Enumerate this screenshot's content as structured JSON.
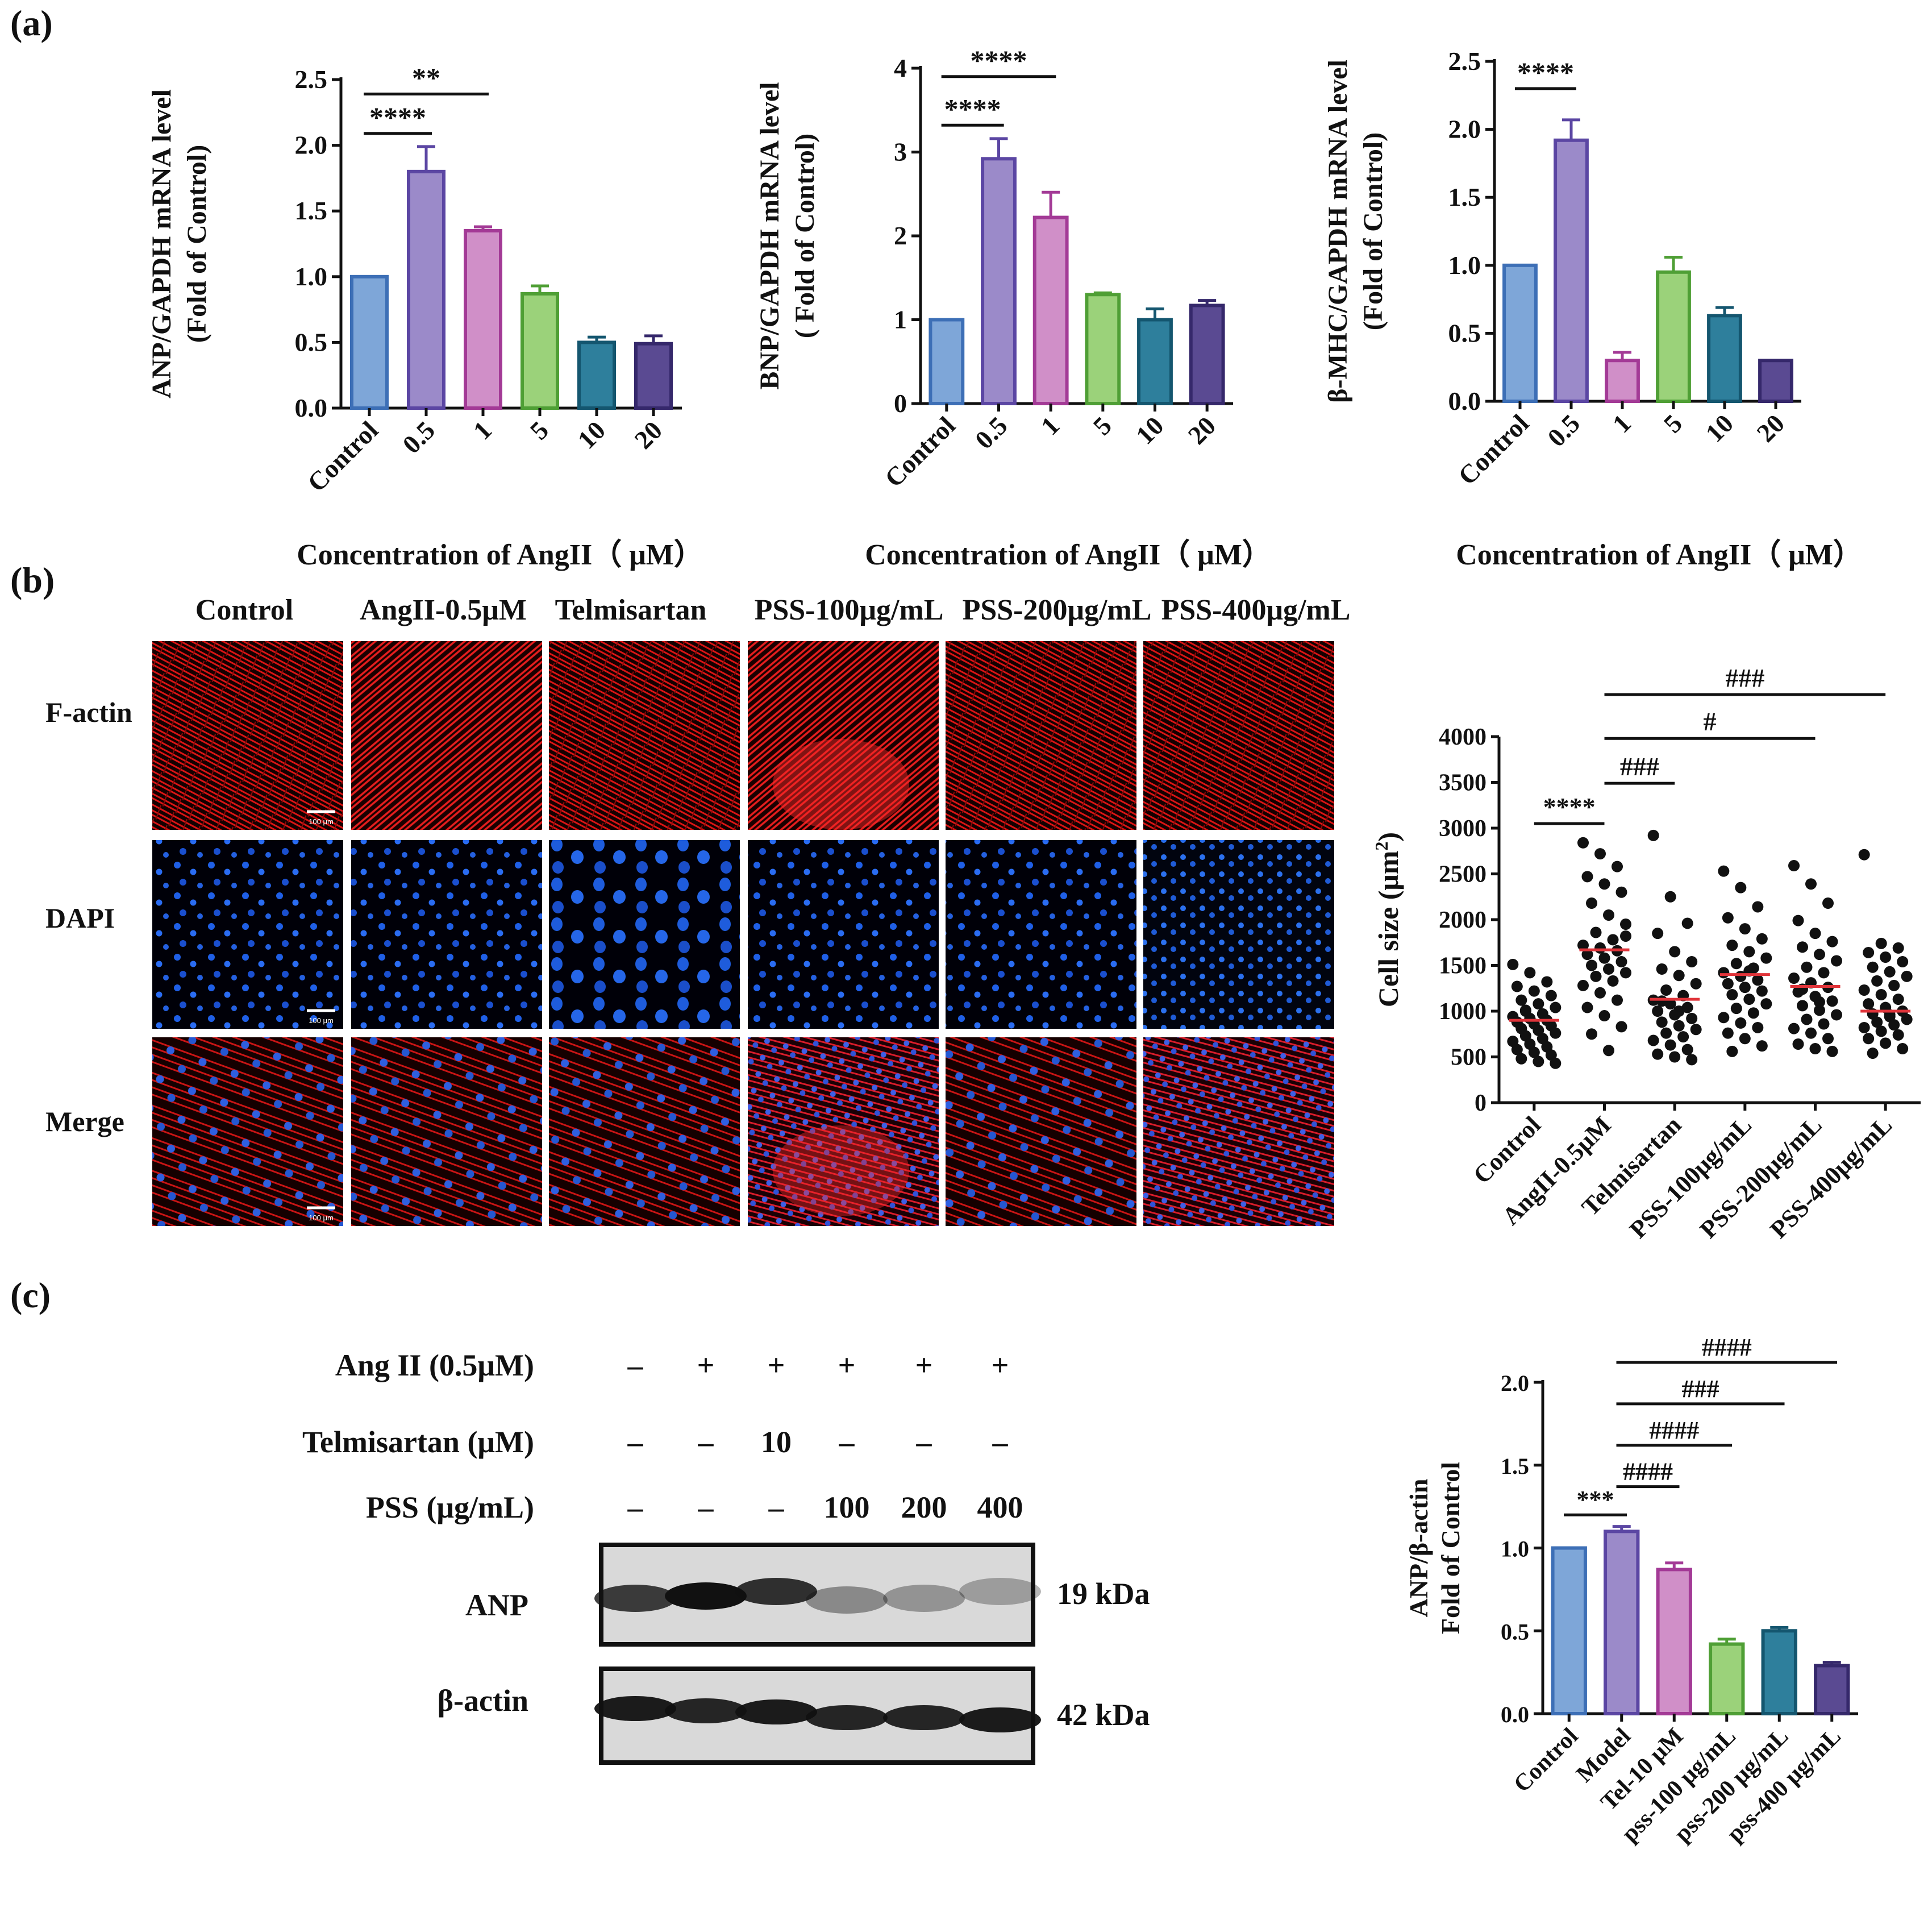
{
  "panels": {
    "a": "(a)",
    "b": "(b)",
    "c": "(c)"
  },
  "colors": {
    "control": "#7ea6d8",
    "p05": "#9b8ac9",
    "p1": "#d08fc8",
    "p5": "#9bd27a",
    "p10": "#2e7f9c",
    "p20": "#5a4a92",
    "red_line": "#e0343a"
  },
  "chart_data": [
    {
      "type": "bar",
      "ylabel_line1": "ANP/GAPDH mRNA level",
      "ylabel_line2": "(Fold of Control)",
      "xlabel": "Concentration of AngII（ μM）",
      "categories": [
        "Control",
        "0.5",
        "1",
        "5",
        "10",
        "20"
      ],
      "values": [
        1.0,
        1.8,
        1.35,
        0.87,
        0.5,
        0.49
      ],
      "errors": [
        0.0,
        0.19,
        0.03,
        0.06,
        0.04,
        0.06
      ],
      "ylim": [
        0,
        2.5
      ],
      "yticks": [
        "0.0",
        "0.5",
        "1.0",
        "1.5",
        "2.0",
        "2.5"
      ],
      "significance": [
        {
          "from": 0,
          "to": 1,
          "label": "****",
          "y": 2.09
        },
        {
          "from": 0,
          "to": 2,
          "label": "**",
          "y": 2.39
        }
      ]
    },
    {
      "type": "bar",
      "ylabel_line1": "BNP/GAPDH  mRNA level",
      "ylabel_line2": "( Fold of Control)",
      "xlabel": "Concentration of AngII（ μM）",
      "categories": [
        "Control",
        "0.5",
        "1",
        "5",
        "10",
        "20"
      ],
      "values": [
        1.0,
        2.92,
        2.22,
        1.3,
        1.0,
        1.17
      ],
      "errors": [
        0.0,
        0.24,
        0.3,
        0.02,
        0.13,
        0.06
      ],
      "ylim": [
        0,
        4
      ],
      "yticks": [
        "0",
        "1",
        "2",
        "3",
        "4"
      ],
      "significance": [
        {
          "from": 0,
          "to": 1,
          "label": "****",
          "y": 3.32
        },
        {
          "from": 0,
          "to": 2,
          "label": "****",
          "y": 3.9
        }
      ]
    },
    {
      "type": "bar",
      "ylabel_line1": "β-MHC/GAPDH  mRNA level",
      "ylabel_line2": "(Fold of Control)",
      "xlabel": "Concentration of AngII（ μM）",
      "categories": [
        "Control",
        "0.5",
        "1",
        "5",
        "10",
        "20"
      ],
      "values": [
        1.0,
        1.92,
        0.3,
        0.95,
        0.63,
        0.3
      ],
      "errors": [
        0.0,
        0.15,
        0.06,
        0.11,
        0.06,
        0.0
      ],
      "ylim": [
        0,
        2.5
      ],
      "yticks": [
        "0.0",
        "0.5",
        "1.0",
        "1.5",
        "2.0",
        "2.5"
      ],
      "significance": [
        {
          "from": 0,
          "to": 1,
          "label": "****",
          "y": 2.3
        }
      ]
    },
    {
      "type": "scatter",
      "ylabel": "Cell size (μm",
      "ylabel_sup": "2",
      "ylabel_close": ")",
      "categories": [
        "Control",
        "AngII-0.5μM",
        "Telmisartan",
        "PSS-100μg/mL",
        "PSS-200μg/mL",
        "PSS-400μg/mL"
      ],
      "ylim": [
        0,
        4000
      ],
      "yticks": [
        "0",
        "500",
        "1000",
        "1500",
        "2000",
        "2500",
        "3000",
        "3500",
        "4000"
      ],
      "means": [
        900,
        1670,
        1130,
        1400,
        1270,
        1000
      ],
      "points": [
        [
          1510,
          1420,
          1320,
          1270,
          1220,
          1170,
          1120,
          1080,
          1040,
          1000,
          970,
          940,
          920,
          900,
          880,
          860,
          840,
          810,
          790,
          760,
          730,
          700,
          670,
          640,
          610,
          580,
          550,
          520,
          480,
          450,
          430,
          1010
        ],
        [
          2840,
          2720,
          2580,
          2470,
          2390,
          2300,
          2180,
          2050,
          1950,
          1860,
          1780,
          1720,
          1690,
          1660,
          1620,
          1580,
          1540,
          1500,
          1460,
          1420,
          1380,
          1330,
          1280,
          1200,
          1120,
          1040,
          950,
          830,
          750,
          570,
          1820
        ],
        [
          2920,
          2250,
          1960,
          1850,
          1650,
          1540,
          1460,
          1390,
          1300,
          1230,
          1170,
          1120,
          1080,
          1040,
          1000,
          960,
          920,
          880,
          840,
          800,
          760,
          720,
          680,
          630,
          580,
          530,
          500,
          470,
          1110,
          1000
        ],
        [
          2530,
          2350,
          2140,
          2020,
          1900,
          1790,
          1720,
          1650,
          1580,
          1520,
          1470,
          1420,
          1380,
          1340,
          1300,
          1260,
          1220,
          1180,
          1130,
          1080,
          1030,
          980,
          930,
          870,
          820,
          760,
          700,
          620,
          560,
          1440
        ],
        [
          2590,
          2390,
          2180,
          1990,
          1850,
          1760,
          1700,
          1620,
          1550,
          1480,
          1420,
          1360,
          1310,
          1260,
          1210,
          1160,
          1110,
          1060,
          1010,
          960,
          910,
          860,
          810,
          760,
          700,
          640,
          590,
          560,
          1240,
          1100
        ],
        [
          2710,
          1740,
          1690,
          1640,
          1590,
          1540,
          1480,
          1430,
          1380,
          1330,
          1280,
          1230,
          1180,
          1130,
          1080,
          1040,
          1000,
          970,
          940,
          910,
          880,
          850,
          820,
          780,
          740,
          700,
          650,
          590,
          540,
          960
        ]
      ],
      "significance": [
        {
          "from": 0,
          "to": 1,
          "label": "****",
          "y": 3050
        },
        {
          "from": 1,
          "to": 2,
          "label": "###",
          "y": 3490
        },
        {
          "from": 1,
          "to": 4,
          "label": "#",
          "y": 3980
        },
        {
          "from": 1,
          "to": 5,
          "label": "###",
          "y": 4460
        }
      ]
    },
    {
      "type": "bar",
      "ylabel_line1": "ANP/β-actin",
      "ylabel_line2": "Fold of Control",
      "categories": [
        "Control",
        "Model",
        "Tel-10 μM",
        "pss-100 μg/mL",
        "pss-200 μg/mL",
        "pss-400 μg/mL"
      ],
      "values": [
        1.0,
        1.1,
        0.87,
        0.42,
        0.5,
        0.29
      ],
      "errors": [
        0.0,
        0.03,
        0.04,
        0.03,
        0.02,
        0.02
      ],
      "ylim": [
        0,
        2.0
      ],
      "yticks": [
        "0.0",
        "0.5",
        "1.0",
        "1.5",
        "2.0"
      ],
      "significance": [
        {
          "from": 0,
          "to": 1,
          "label": "***",
          "y": 1.2
        },
        {
          "from": 1,
          "to": 2,
          "label": "####",
          "y": 1.37
        },
        {
          "from": 1,
          "to": 3,
          "label": "####",
          "y": 1.62
        },
        {
          "from": 1,
          "to": 4,
          "label": "###",
          "y": 1.87
        },
        {
          "from": 1,
          "to": 5,
          "label": "####",
          "y": 2.12
        }
      ]
    }
  ],
  "microscopy": {
    "columns": [
      "Control",
      "AngII-0.5μM",
      "Telmisartan",
      "PSS-100μg/mL",
      "PSS-200μg/mL",
      "PSS-400μg/mL"
    ],
    "rows": [
      "F-actin",
      "DAPI",
      "Merge"
    ],
    "scale_bar": "100 μm"
  },
  "western": {
    "conditions": [
      {
        "label": "Ang II (0.5μM)",
        "values": [
          "–",
          "+",
          "+",
          "+",
          "+",
          "+"
        ]
      },
      {
        "label": "Telmisartan (μM)",
        "values": [
          "–",
          "–",
          "10",
          "–",
          "–",
          "–"
        ]
      },
      {
        "label": "PSS (μg/mL)",
        "values": [
          "–",
          "–",
          "–",
          "100",
          "200",
          "400"
        ]
      }
    ],
    "bands": [
      {
        "label": "ANP",
        "size": "19 kDa"
      },
      {
        "label": "β-actin",
        "size": "42 kDa"
      }
    ]
  }
}
